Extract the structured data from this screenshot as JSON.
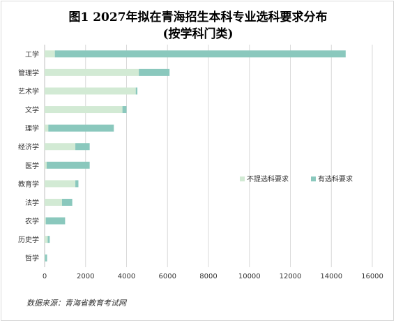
{
  "title_line1": "图1  2027年拟在青海招生本科专业选科要求分布",
  "title_line2": "(按学科门类)",
  "source": "数据来源：青海省教育考试网",
  "colors": {
    "no_requirement": "#d2ead4",
    "has_requirement": "#8ac8bd",
    "grid": "#d9d9d9",
    "axis": "#bfbfbf"
  },
  "chart_data": {
    "type": "bar",
    "orientation": "horizontal",
    "stacked": true,
    "categories": [
      "工学",
      "管理学",
      "艺术学",
      "文学",
      "理学",
      "经济学",
      "医学",
      "教育学",
      "法学",
      "农学",
      "历史学",
      "哲学"
    ],
    "series": [
      {
        "name": "不提选科要求",
        "values": [
          500,
          4600,
          4450,
          3800,
          180,
          1500,
          100,
          1500,
          850,
          60,
          150,
          20
        ]
      },
      {
        "name": "有选科要求",
        "values": [
          14200,
          1500,
          80,
          200,
          3200,
          700,
          2100,
          150,
          500,
          940,
          100,
          100
        ]
      }
    ],
    "xlim": [
      0,
      16000
    ],
    "xticks": [
      0,
      2000,
      4000,
      6000,
      8000,
      10000,
      12000,
      14000,
      16000
    ],
    "grid": true,
    "legend": "right-middle"
  }
}
